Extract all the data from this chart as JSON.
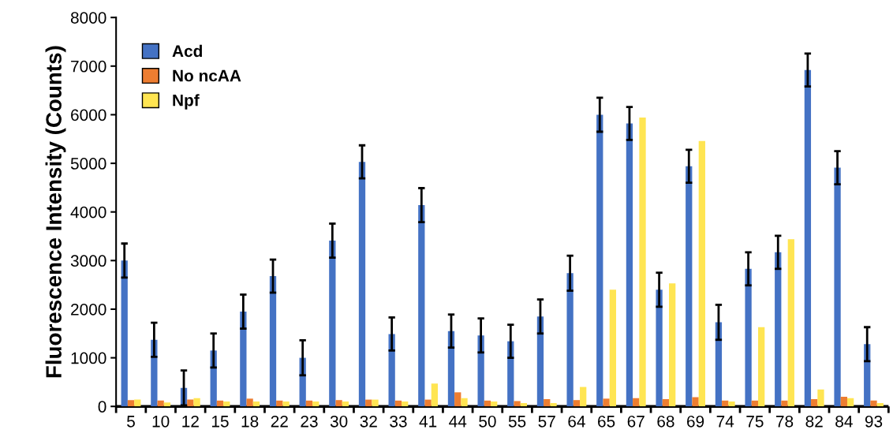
{
  "chart_data": {
    "type": "bar",
    "ylabel": "Fluorescence Intensity (Counts)",
    "categories": [
      "5",
      "10",
      "12",
      "15",
      "18",
      "22",
      "23",
      "30",
      "32",
      "33",
      "41",
      "44",
      "50",
      "55",
      "57",
      "64",
      "65",
      "67",
      "68",
      "69",
      "74",
      "75",
      "78",
      "82",
      "84",
      "93"
    ],
    "series": [
      {
        "name": "Acd",
        "color": "#4472c4",
        "values": [
          3000,
          1370,
          380,
          1150,
          1950,
          2680,
          1000,
          3410,
          5030,
          1490,
          4140,
          1550,
          1460,
          1340,
          1850,
          2740,
          6000,
          5820,
          2400,
          4940,
          1730,
          2830,
          3170,
          6920,
          4910,
          1280
        ],
        "errors": [
          350,
          350,
          360,
          350,
          350,
          340,
          360,
          350,
          340,
          340,
          350,
          340,
          350,
          340,
          350,
          360,
          350,
          340,
          350,
          340,
          360,
          340,
          340,
          340,
          340,
          350
        ]
      },
      {
        "name": "No ncAA",
        "color": "#ed7d31",
        "values": [
          130,
          120,
          140,
          120,
          160,
          120,
          120,
          130,
          140,
          120,
          140,
          290,
          120,
          110,
          150,
          130,
          160,
          170,
          150,
          190,
          120,
          120,
          120,
          150,
          200,
          120
        ]
      },
      {
        "name": "Npf",
        "color": "#ffe552",
        "values": [
          140,
          80,
          170,
          100,
          100,
          100,
          100,
          100,
          140,
          100,
          470,
          170,
          100,
          70,
          70,
          400,
          2400,
          5940,
          2530,
          5460,
          100,
          1630,
          3440,
          350,
          170,
          70
        ]
      }
    ],
    "ylim": [
      0,
      8000
    ],
    "yticks": [
      0,
      1000,
      2000,
      3000,
      4000,
      5000,
      6000,
      7000,
      8000
    ],
    "grid": false,
    "legend": "top left"
  }
}
